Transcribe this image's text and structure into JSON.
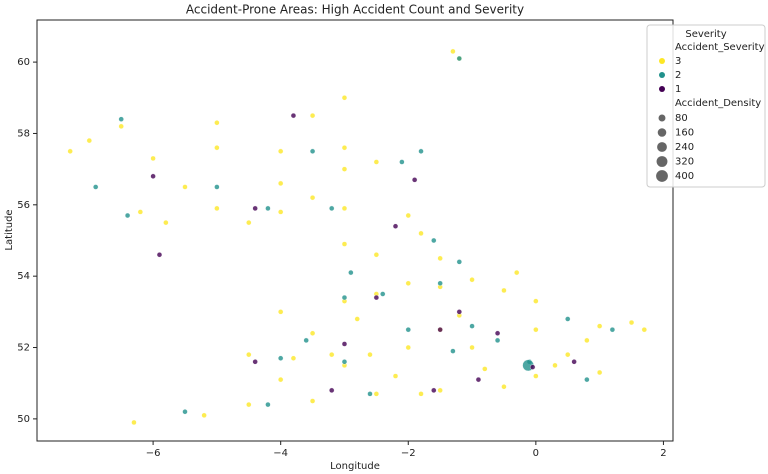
{
  "chart_data": {
    "type": "scatter",
    "title": "Accident-Prone Areas: High Accident Count and Severity",
    "x_label": "Longitude",
    "y_label": "Latitude",
    "xlim": [
      -7.82,
      2.15
    ],
    "ylim": [
      49.38,
      61.18
    ],
    "xticks": [
      {
        "value": -6,
        "label": "−6"
      },
      {
        "value": -4,
        "label": "−4"
      },
      {
        "value": -2,
        "label": "−2"
      },
      {
        "value": 0,
        "label": "0"
      },
      {
        "value": 2,
        "label": "2"
      }
    ],
    "yticks": [
      50,
      52,
      54,
      56,
      58,
      60
    ],
    "legend_title": "Severity",
    "legend_position": "upper right",
    "color_legend_title": "Accident_Severity",
    "size_legend": {
      "title": "Accident_Density",
      "values": [
        80,
        160,
        240,
        320,
        400
      ]
    },
    "series": [
      {
        "name": "3",
        "color": "#fde725",
        "x": [
          -2,
          -1.5,
          -1,
          0,
          1,
          1.5,
          0.5,
          1,
          0,
          -0.5,
          -1.5,
          -2.5,
          -3.5,
          -4.5,
          -5.2,
          -4,
          -3,
          -3.8,
          -4.5,
          -3.5,
          -4,
          -3,
          -2.5,
          -2,
          -1.5,
          -1,
          -0.5,
          0,
          -1.5,
          -2.5,
          -3,
          -1.8,
          -2,
          -3,
          -4,
          -3.5,
          -4.5,
          -5,
          -5.5,
          -4,
          -3,
          -2.5,
          -4,
          -3,
          -5,
          -6,
          -7,
          -7.3,
          -6.5,
          -5,
          -3.5,
          -3,
          -1.3,
          -1.2,
          -6.3,
          -2.8,
          -0.8,
          0.3,
          -1.2,
          -2.2,
          -5.8,
          -6.2,
          -1.8,
          1.7,
          0.8,
          -2.6,
          -3.2,
          -0.3
        ],
        "y": [
          52,
          52.5,
          52,
          52.5,
          52.6,
          52.7,
          51.8,
          51.3,
          51.2,
          50.9,
          50.8,
          50.7,
          50.5,
          50.4,
          50.1,
          51.1,
          51.5,
          51.7,
          51.8,
          52.4,
          53,
          53.3,
          53.5,
          53.8,
          53.7,
          53.9,
          53.6,
          53.3,
          54.5,
          54.6,
          54.9,
          55.2,
          55.7,
          55.9,
          55.8,
          56.2,
          55.5,
          55.9,
          56.5,
          56.6,
          57,
          57.2,
          57.5,
          57.6,
          57.6,
          57.3,
          57.8,
          57.5,
          58.2,
          58.3,
          58.5,
          59,
          60.3,
          60.1,
          49.9,
          52.8,
          51.4,
          51.5,
          52.9,
          51.2,
          55.5,
          55.8,
          50.7,
          52.5,
          52.2,
          51.8,
          51.8,
          54.1
        ],
        "sizes": [
          20,
          20,
          20,
          20,
          20,
          20,
          20,
          20,
          20,
          20,
          20,
          20,
          20,
          20,
          20,
          20,
          20,
          20,
          20,
          20,
          20,
          20,
          20,
          20,
          20,
          20,
          20,
          20,
          20,
          20,
          20,
          20,
          20,
          20,
          20,
          20,
          20,
          20,
          20,
          20,
          20,
          20,
          20,
          20,
          20,
          20,
          20,
          20,
          20,
          20,
          20,
          20,
          20,
          20,
          20,
          20,
          20,
          20,
          20,
          20,
          20,
          20,
          20,
          20,
          20,
          20,
          20,
          20
        ]
      },
      {
        "name": "2",
        "color": "#21918c",
        "x": [
          -2.4,
          -1.5,
          -2,
          -1,
          0.5,
          1.2,
          -3,
          -4,
          -4.2,
          -5.5,
          -3.2,
          -4.2,
          -2.1,
          -3.5,
          -1.8,
          -6.9,
          -6.4,
          -3,
          -1.6,
          -2.9,
          -1.3,
          0.8,
          -2.6,
          -3.6,
          -1.2,
          -6.5,
          -5,
          -1.2,
          -0.6,
          -0.1,
          -0.12
        ],
        "y": [
          53.5,
          53.8,
          52.5,
          52.6,
          52.8,
          52.5,
          51.6,
          51.7,
          50.4,
          50.2,
          55.9,
          55.9,
          57.2,
          57.5,
          57.5,
          56.5,
          55.7,
          53.4,
          55,
          54.1,
          51.9,
          51.1,
          50.7,
          52.2,
          60.1,
          58.4,
          56.5,
          54.4,
          52.2,
          51.6,
          51.5
        ],
        "sizes": [
          20,
          20,
          20,
          20,
          20,
          20,
          20,
          20,
          20,
          20,
          20,
          20,
          20,
          20,
          20,
          20,
          20,
          20,
          20,
          20,
          20,
          20,
          20,
          20,
          20,
          20,
          20,
          20,
          20,
          20,
          350
        ]
      },
      {
        "name": "1",
        "color": "#440154",
        "x": [
          -0.05,
          -0.6,
          -1.5,
          -2.5,
          -3.2,
          -1.6,
          0.6,
          -3,
          -4.4,
          -5.9,
          -4.4,
          -2.2,
          -3.8,
          -6,
          -1.2,
          -0.9,
          -1.9
        ],
        "y": [
          51.45,
          52.4,
          52.5,
          53.4,
          50.8,
          50.8,
          51.6,
          52.1,
          55.9,
          54.6,
          51.6,
          55.4,
          58.5,
          56.8,
          53,
          51.1,
          56.7
        ],
        "sizes": [
          20,
          20,
          20,
          20,
          20,
          20,
          20,
          20,
          20,
          20,
          20,
          20,
          20,
          20,
          20,
          20,
          20
        ]
      }
    ]
  }
}
